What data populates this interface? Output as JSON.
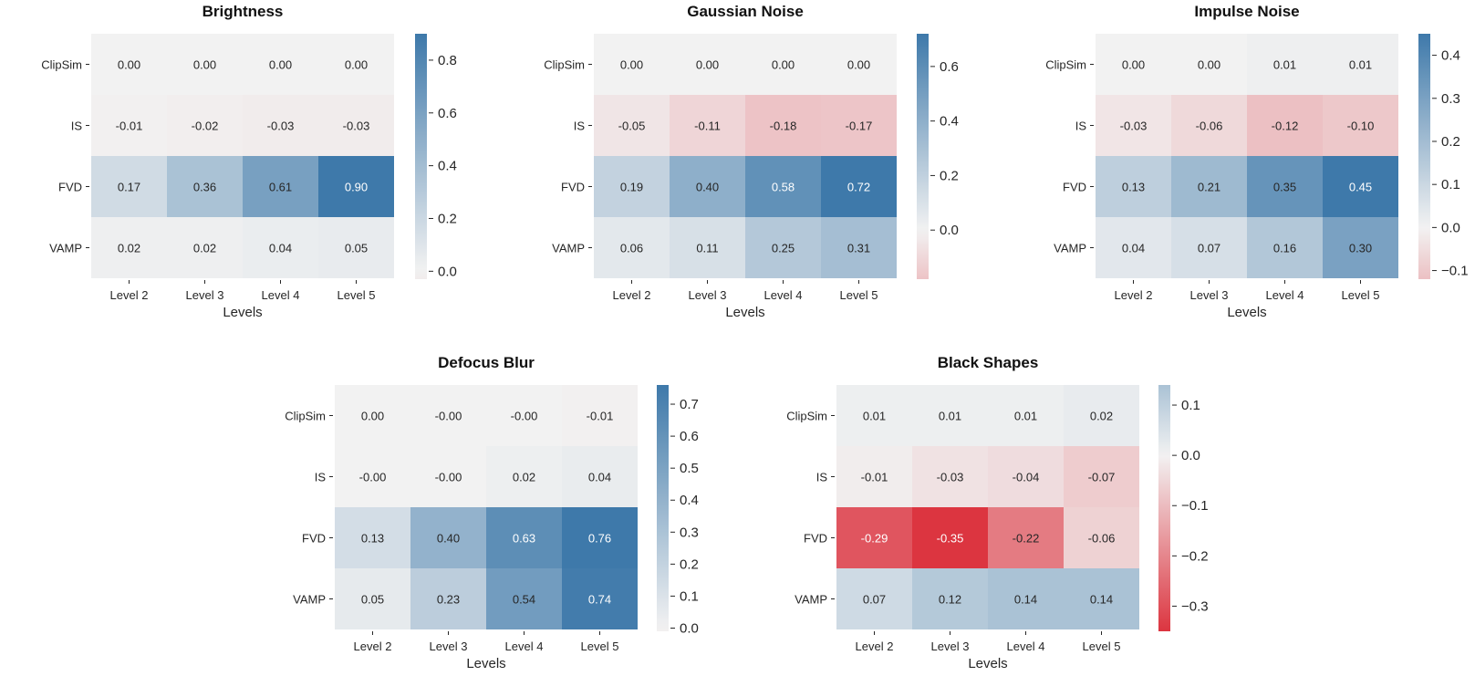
{
  "chart_data": [
    {
      "type": "heatmap",
      "title": "Brightness",
      "xlabel": "Levels",
      "ylabel": "",
      "x_categories": [
        "Level 2",
        "Level 3",
        "Level 4",
        "Level 5"
      ],
      "y_categories": [
        "ClipSim",
        "IS",
        "FVD",
        "VAMP"
      ],
      "values": [
        [
          0.0,
          0.0,
          0.0,
          0.0
        ],
        [
          -0.01,
          -0.02,
          -0.03,
          -0.03
        ],
        [
          0.17,
          0.36,
          0.61,
          0.9
        ],
        [
          0.02,
          0.02,
          0.04,
          0.05
        ]
      ],
      "annotations": [
        [
          "0.00",
          "0.00",
          "0.00",
          "0.00"
        ],
        [
          "-0.01",
          "-0.02",
          "-0.03",
          "-0.03"
        ],
        [
          "0.17",
          "0.36",
          "0.61",
          "0.90"
        ],
        [
          "0.02",
          "0.02",
          "0.04",
          "0.05"
        ]
      ],
      "colorbar": {
        "range": [
          -0.03,
          0.9
        ],
        "ticks": [
          0.0,
          0.2,
          0.4,
          0.6,
          0.8
        ],
        "tick_labels": [
          "0.0",
          "0.2",
          "0.4",
          "0.6",
          "0.8"
        ]
      },
      "colormap": {
        "negative": "#dc3540",
        "neutral": "#f2f2f2",
        "positive": "#3e79aa"
      }
    },
    {
      "type": "heatmap",
      "title": "Gaussian Noise",
      "xlabel": "Levels",
      "ylabel": "",
      "x_categories": [
        "Level 2",
        "Level 3",
        "Level 4",
        "Level 5"
      ],
      "y_categories": [
        "ClipSim",
        "IS",
        "FVD",
        "VAMP"
      ],
      "values": [
        [
          0.0,
          0.0,
          0.0,
          0.0
        ],
        [
          -0.05,
          -0.11,
          -0.18,
          -0.17
        ],
        [
          0.19,
          0.4,
          0.58,
          0.72
        ],
        [
          0.06,
          0.11,
          0.25,
          0.31
        ]
      ],
      "annotations": [
        [
          "0.00",
          "0.00",
          "0.00",
          "0.00"
        ],
        [
          "-0.05",
          "-0.11",
          "-0.18",
          "-0.17"
        ],
        [
          "0.19",
          "0.40",
          "0.58",
          "0.72"
        ],
        [
          "0.06",
          "0.11",
          "0.25",
          "0.31"
        ]
      ],
      "colorbar": {
        "range": [
          -0.18,
          0.72
        ],
        "ticks": [
          0.0,
          0.2,
          0.4,
          0.6
        ],
        "tick_labels": [
          "0.0",
          "0.2",
          "0.4",
          "0.6"
        ]
      },
      "colormap": {
        "negative": "#dc3540",
        "neutral": "#f2f2f2",
        "positive": "#3e79aa"
      }
    },
    {
      "type": "heatmap",
      "title": "Impulse Noise",
      "xlabel": "Levels",
      "ylabel": "",
      "x_categories": [
        "Level 2",
        "Level 3",
        "Level 4",
        "Level 5"
      ],
      "y_categories": [
        "ClipSim",
        "IS",
        "FVD",
        "VAMP"
      ],
      "values": [
        [
          0.0,
          0.0,
          0.01,
          0.01
        ],
        [
          -0.03,
          -0.06,
          -0.12,
          -0.1
        ],
        [
          0.13,
          0.21,
          0.35,
          0.45
        ],
        [
          0.04,
          0.07,
          0.16,
          0.3
        ]
      ],
      "annotations": [
        [
          "0.00",
          "0.00",
          "0.01",
          "0.01"
        ],
        [
          "-0.03",
          "-0.06",
          "-0.12",
          "-0.10"
        ],
        [
          "0.13",
          "0.21",
          "0.35",
          "0.45"
        ],
        [
          "0.04",
          "0.07",
          "0.16",
          "0.30"
        ]
      ],
      "colorbar": {
        "range": [
          -0.12,
          0.45
        ],
        "ticks": [
          -0.1,
          0.0,
          0.1,
          0.2,
          0.3,
          0.4
        ],
        "tick_labels": [
          "−0.1",
          "0.0",
          "0.1",
          "0.2",
          "0.3",
          "0.4"
        ]
      },
      "colormap": {
        "negative": "#dc3540",
        "neutral": "#f2f2f2",
        "positive": "#3e79aa"
      }
    },
    {
      "type": "heatmap",
      "title": "Defocus Blur",
      "xlabel": "Levels",
      "ylabel": "",
      "x_categories": [
        "Level 2",
        "Level 3",
        "Level 4",
        "Level 5"
      ],
      "y_categories": [
        "ClipSim",
        "IS",
        "FVD",
        "VAMP"
      ],
      "values": [
        [
          0.0,
          -0.0,
          -0.0,
          -0.01
        ],
        [
          -0.0,
          -0.0,
          0.02,
          0.04
        ],
        [
          0.13,
          0.4,
          0.63,
          0.76
        ],
        [
          0.05,
          0.23,
          0.54,
          0.74
        ]
      ],
      "annotations": [
        [
          "0.00",
          "-0.00",
          "-0.00",
          "-0.01"
        ],
        [
          "-0.00",
          "-0.00",
          "0.02",
          "0.04"
        ],
        [
          "0.13",
          "0.40",
          "0.63",
          "0.76"
        ],
        [
          "0.05",
          "0.23",
          "0.54",
          "0.74"
        ]
      ],
      "colorbar": {
        "range": [
          -0.01,
          0.76
        ],
        "ticks": [
          0.0,
          0.1,
          0.2,
          0.3,
          0.4,
          0.5,
          0.6,
          0.7
        ],
        "tick_labels": [
          "0.0",
          "0.1",
          "0.2",
          "0.3",
          "0.4",
          "0.5",
          "0.6",
          "0.7"
        ]
      },
      "colormap": {
        "negative": "#dc3540",
        "neutral": "#f2f2f2",
        "positive": "#3e79aa"
      }
    },
    {
      "type": "heatmap",
      "title": "Black Shapes",
      "xlabel": "Levels",
      "ylabel": "",
      "x_categories": [
        "Level 2",
        "Level 3",
        "Level 4",
        "Level 5"
      ],
      "y_categories": [
        "ClipSim",
        "IS",
        "FVD",
        "VAMP"
      ],
      "values": [
        [
          0.01,
          0.01,
          0.01,
          0.02
        ],
        [
          -0.01,
          -0.03,
          -0.04,
          -0.07
        ],
        [
          -0.29,
          -0.35,
          -0.22,
          -0.06
        ],
        [
          0.07,
          0.12,
          0.14,
          0.14
        ]
      ],
      "annotations": [
        [
          "0.01",
          "0.01",
          "0.01",
          "0.02"
        ],
        [
          "-0.01",
          "-0.03",
          "-0.04",
          "-0.07"
        ],
        [
          "-0.29",
          "-0.35",
          "-0.22",
          "-0.06"
        ],
        [
          "0.07",
          "0.12",
          "0.14",
          "0.14"
        ]
      ],
      "colorbar": {
        "range": [
          -0.35,
          0.14
        ],
        "ticks": [
          -0.3,
          -0.2,
          -0.1,
          0.0,
          0.1
        ],
        "tick_labels": [
          "−0.3",
          "−0.2",
          "−0.1",
          "0.0",
          "0.1"
        ]
      },
      "colormap": {
        "negative": "#dc3540",
        "neutral": "#f2f2f2",
        "positive": "#3e79aa"
      }
    }
  ]
}
